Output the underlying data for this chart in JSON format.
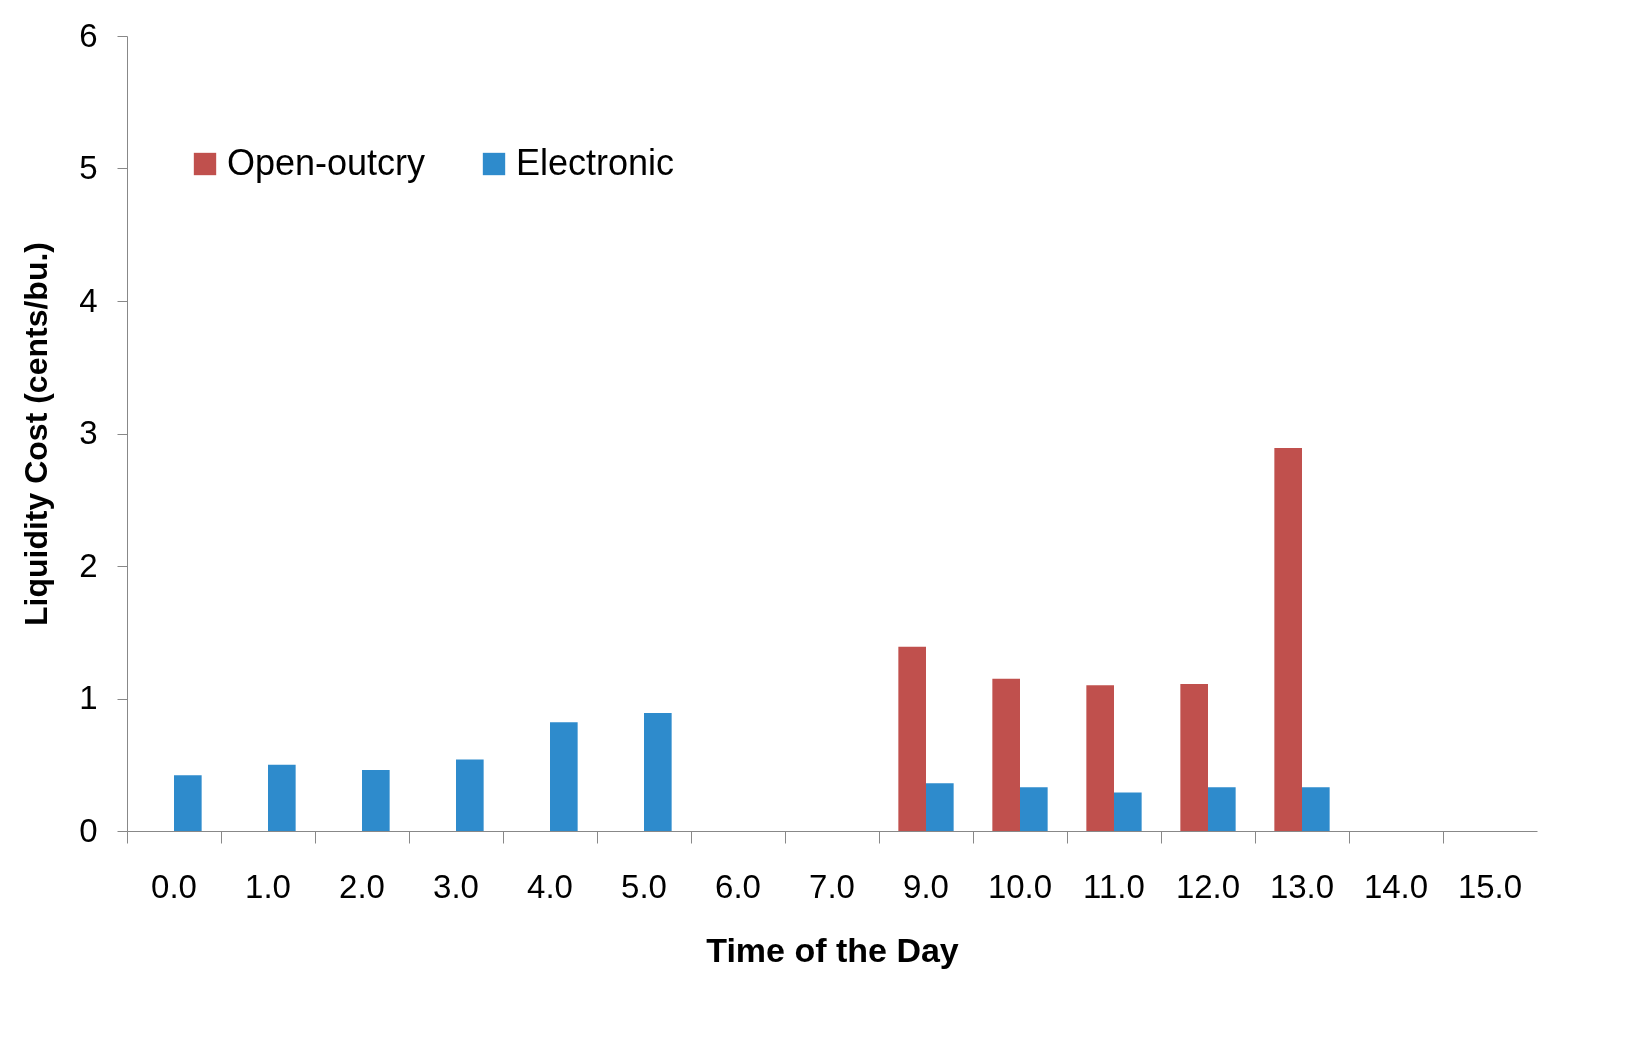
{
  "chart_data": {
    "type": "bar",
    "xlabel": "Time of the Day",
    "ylabel": "Liquidity Cost (cents/bu.)",
    "categories": [
      "0.0",
      "1.0",
      "2.0",
      "3.0",
      "4.0",
      "5.0",
      "6.0",
      "7.0",
      "9.0",
      "10.0",
      "11.0",
      "12.0",
      "13.0",
      "14.0",
      "15.0"
    ],
    "series": [
      {
        "name": "Open-outcry",
        "color": "#c0504d",
        "values": [
          null,
          null,
          null,
          null,
          null,
          null,
          null,
          null,
          1.39,
          1.15,
          1.1,
          1.11,
          2.89,
          null,
          null
        ]
      },
      {
        "name": "Electronic",
        "color": "#2e8bcc",
        "values": [
          0.42,
          0.5,
          0.46,
          0.54,
          0.82,
          0.89,
          null,
          null,
          0.36,
          0.33,
          0.29,
          0.33,
          0.33,
          null,
          null
        ]
      }
    ],
    "ylim": [
      0,
      6
    ],
    "yticks": [
      0,
      1,
      2,
      3,
      4,
      5,
      6
    ],
    "grid": false,
    "legend": "top left"
  }
}
